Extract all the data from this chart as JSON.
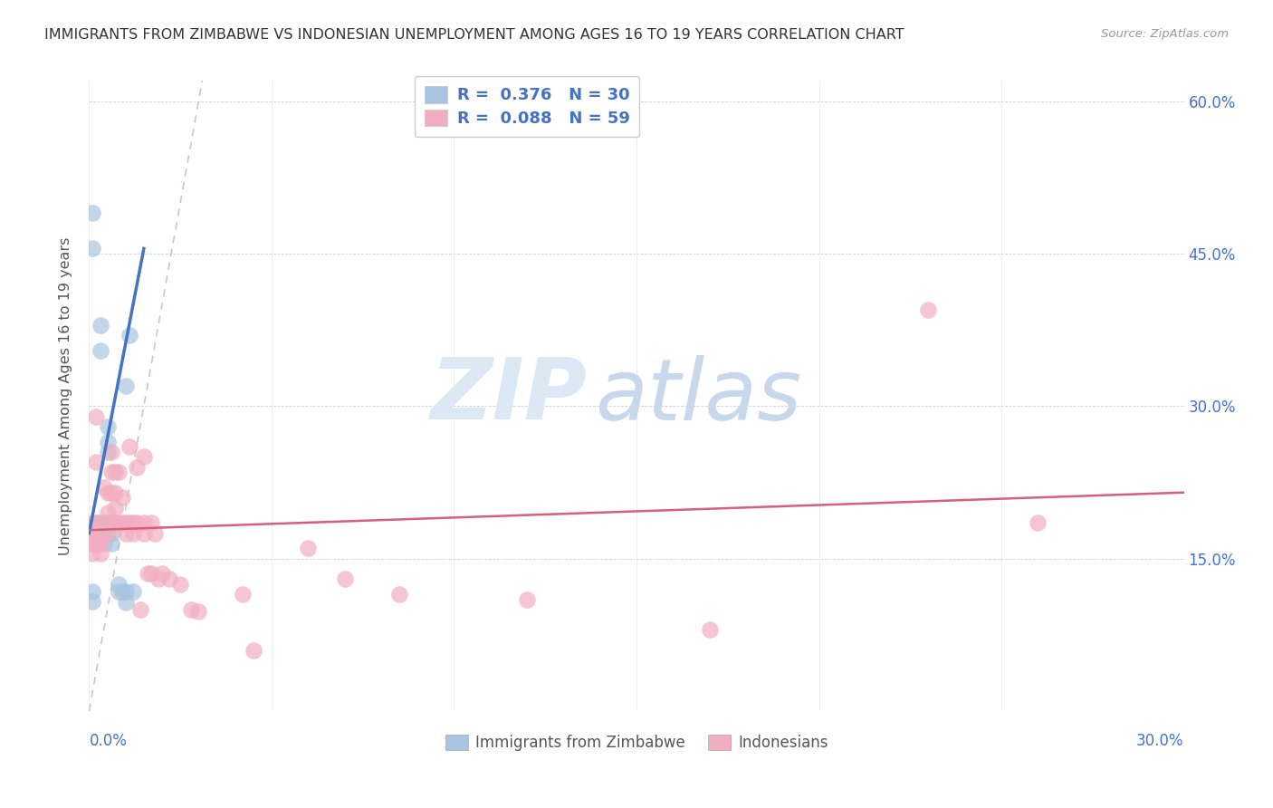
{
  "title": "IMMIGRANTS FROM ZIMBABWE VS INDONESIAN UNEMPLOYMENT AMONG AGES 16 TO 19 YEARS CORRELATION CHART",
  "source": "Source: ZipAtlas.com",
  "ylabel": "Unemployment Among Ages 16 to 19 years",
  "xlim": [
    0,
    0.3
  ],
  "ylim": [
    0,
    0.62
  ],
  "ytick_vals": [
    0.15,
    0.3,
    0.45,
    0.6
  ],
  "ytick_labels": [
    "15.0%",
    "30.0%",
    "45.0%",
    "60.0%"
  ],
  "legend1_R": "0.376",
  "legend1_N": "30",
  "legend2_R": "0.088",
  "legend2_N": "59",
  "legend1_label": "Immigrants from Zimbabwe",
  "legend2_label": "Indonesians",
  "blue_color": "#a8c4e0",
  "blue_line_color": "#4472c4",
  "pink_color": "#f2aec0",
  "pink_line_color": "#d4607a",
  "dashed_line_color": "#c0c8d8",
  "watermark_zip": "ZIP",
  "watermark_atlas": "atlas",
  "title_color": "#333333",
  "axis_label_color": "#4472c4",
  "legend_text_color": "#4472c4",
  "blue_scatter_x": [
    0.001,
    0.001,
    0.002,
    0.002,
    0.002,
    0.003,
    0.003,
    0.003,
    0.004,
    0.004,
    0.004,
    0.005,
    0.005,
    0.005,
    0.005,
    0.005,
    0.006,
    0.006,
    0.006,
    0.007,
    0.008,
    0.008,
    0.009,
    0.01,
    0.01,
    0.01,
    0.011,
    0.012,
    0.001,
    0.001
  ],
  "blue_scatter_y": [
    0.49,
    0.455,
    0.185,
    0.175,
    0.165,
    0.38,
    0.355,
    0.185,
    0.185,
    0.175,
    0.165,
    0.28,
    0.265,
    0.255,
    0.185,
    0.175,
    0.185,
    0.175,
    0.165,
    0.185,
    0.125,
    0.118,
    0.118,
    0.32,
    0.118,
    0.107,
    0.37,
    0.118,
    0.118,
    0.108
  ],
  "pink_scatter_x": [
    0.001,
    0.001,
    0.001,
    0.001,
    0.002,
    0.002,
    0.002,
    0.002,
    0.003,
    0.003,
    0.003,
    0.004,
    0.004,
    0.005,
    0.005,
    0.005,
    0.006,
    0.006,
    0.006,
    0.006,
    0.007,
    0.007,
    0.007,
    0.007,
    0.008,
    0.008,
    0.009,
    0.009,
    0.01,
    0.01,
    0.011,
    0.011,
    0.012,
    0.012,
    0.013,
    0.013,
    0.014,
    0.015,
    0.015,
    0.015,
    0.016,
    0.017,
    0.017,
    0.018,
    0.019,
    0.02,
    0.022,
    0.025,
    0.028,
    0.03,
    0.042,
    0.045,
    0.06,
    0.07,
    0.085,
    0.12,
    0.17,
    0.23,
    0.26
  ],
  "pink_scatter_y": [
    0.185,
    0.175,
    0.165,
    0.155,
    0.29,
    0.245,
    0.185,
    0.165,
    0.175,
    0.165,
    0.155,
    0.22,
    0.185,
    0.215,
    0.195,
    0.175,
    0.255,
    0.235,
    0.215,
    0.185,
    0.235,
    0.215,
    0.2,
    0.185,
    0.235,
    0.185,
    0.21,
    0.185,
    0.185,
    0.175,
    0.26,
    0.185,
    0.185,
    0.175,
    0.24,
    0.185,
    0.1,
    0.25,
    0.185,
    0.175,
    0.135,
    0.135,
    0.185,
    0.175,
    0.13,
    0.135,
    0.13,
    0.125,
    0.1,
    0.098,
    0.115,
    0.06,
    0.16,
    0.13,
    0.115,
    0.11,
    0.08,
    0.395,
    0.185
  ],
  "blue_line_x": [
    0.0,
    0.015
  ],
  "blue_line_y": [
    0.175,
    0.455
  ],
  "pink_line_x": [
    0.0,
    0.3
  ],
  "pink_line_y": [
    0.178,
    0.215
  ],
  "dash_line_x": [
    0.0,
    0.031
  ],
  "dash_line_y": [
    0.0,
    0.62
  ]
}
